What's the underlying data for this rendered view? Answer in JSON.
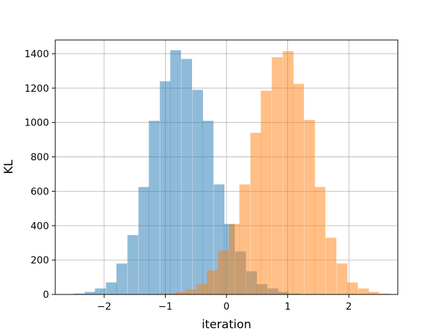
{
  "chart_data": {
    "type": "bar",
    "subtype": "overlapping-histogram",
    "title": "",
    "xlabel": "iteration",
    "ylabel": "KL",
    "xlim": [
      -2.8,
      2.8
    ],
    "ylim": [
      0,
      1480
    ],
    "xticks": [
      -2,
      -1,
      0,
      1,
      2
    ],
    "xtick_labels": [
      "−2",
      "−1",
      "0",
      "1",
      "2"
    ],
    "yticks": [
      0,
      200,
      400,
      600,
      800,
      1000,
      1200,
      1400
    ],
    "ytick_labels": [
      "0",
      "200",
      "400",
      "600",
      "800",
      "1000",
      "1200",
      "1400"
    ],
    "grid": true,
    "legend": "none",
    "series": [
      {
        "color": "#1f77b4",
        "opacity": 0.5,
        "bin_width": 0.176,
        "bins": [
          {
            "x0": -2.5,
            "value": 5
          },
          {
            "x0": -2.32,
            "value": 15
          },
          {
            "x0": -2.15,
            "value": 35
          },
          {
            "x0": -1.97,
            "value": 70
          },
          {
            "x0": -1.8,
            "value": 180
          },
          {
            "x0": -1.62,
            "value": 345
          },
          {
            "x0": -1.44,
            "value": 625
          },
          {
            "x0": -1.27,
            "value": 1010
          },
          {
            "x0": -1.09,
            "value": 1240
          },
          {
            "x0": -0.92,
            "value": 1420
          },
          {
            "x0": -0.74,
            "value": 1370
          },
          {
            "x0": -0.56,
            "value": 1190
          },
          {
            "x0": -0.39,
            "value": 1010
          },
          {
            "x0": -0.21,
            "value": 640
          },
          {
            "x0": -0.04,
            "value": 410
          },
          {
            "x0": 0.14,
            "value": 250
          },
          {
            "x0": 0.32,
            "value": 135
          },
          {
            "x0": 0.49,
            "value": 60
          },
          {
            "x0": 0.67,
            "value": 35
          },
          {
            "x0": 0.84,
            "value": 15
          },
          {
            "x0": 1.02,
            "value": 5
          }
        ]
      },
      {
        "color": "#ff7f0e",
        "opacity": 0.5,
        "bin_width": 0.176,
        "bins": [
          {
            "x0": -1.02,
            "value": 5
          },
          {
            "x0": -0.84,
            "value": 15
          },
          {
            "x0": -0.67,
            "value": 30
          },
          {
            "x0": -0.49,
            "value": 60
          },
          {
            "x0": -0.32,
            "value": 140
          },
          {
            "x0": -0.14,
            "value": 255
          },
          {
            "x0": 0.04,
            "value": 410
          },
          {
            "x0": 0.21,
            "value": 640
          },
          {
            "x0": 0.39,
            "value": 940
          },
          {
            "x0": 0.56,
            "value": 1185
          },
          {
            "x0": 0.74,
            "value": 1380
          },
          {
            "x0": 0.92,
            "value": 1415
          },
          {
            "x0": 1.09,
            "value": 1225
          },
          {
            "x0": 1.27,
            "value": 1015
          },
          {
            "x0": 1.44,
            "value": 625
          },
          {
            "x0": 1.62,
            "value": 330
          },
          {
            "x0": 1.8,
            "value": 180
          },
          {
            "x0": 1.97,
            "value": 70
          },
          {
            "x0": 2.15,
            "value": 35
          },
          {
            "x0": 2.32,
            "value": 15
          },
          {
            "x0": 2.5,
            "value": 5
          }
        ]
      }
    ]
  }
}
